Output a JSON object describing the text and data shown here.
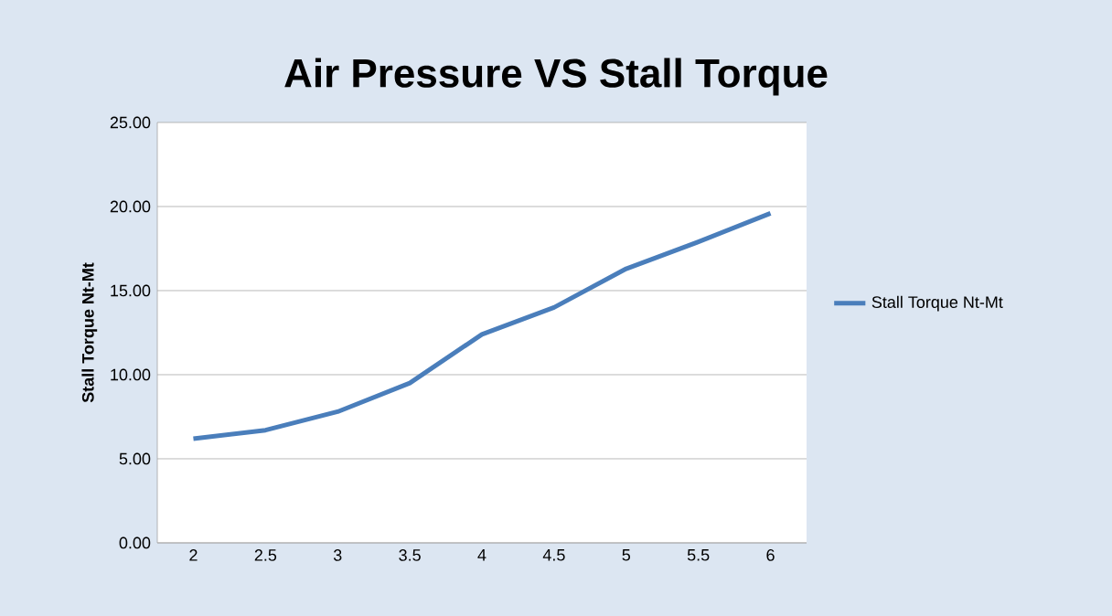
{
  "chart_data": {
    "type": "line",
    "title": "Air Pressure VS Stall Torque",
    "ylabel": "Stall Torque Nt-Mt",
    "categories": [
      "2",
      "2.5",
      "3",
      "3.5",
      "4",
      "4.5",
      "5",
      "5.5",
      "6"
    ],
    "series": [
      {
        "name": "Stall Torque Nt-Mt",
        "color": "#4a7ebb",
        "values": [
          6.2,
          6.7,
          7.8,
          9.5,
          12.4,
          14.0,
          16.3,
          17.9,
          19.6
        ]
      }
    ],
    "ylim": [
      0,
      25
    ],
    "yticks": [
      {
        "value": 0,
        "label": "0.00"
      },
      {
        "value": 5,
        "label": "5.00"
      },
      {
        "value": 10,
        "label": "10.00"
      },
      {
        "value": 15,
        "label": "15.00"
      },
      {
        "value": 20,
        "label": "20.00"
      },
      {
        "value": 25,
        "label": "25.00"
      }
    ],
    "grid": "y",
    "legend": "right",
    "marker": "none",
    "line_style": "solid"
  }
}
